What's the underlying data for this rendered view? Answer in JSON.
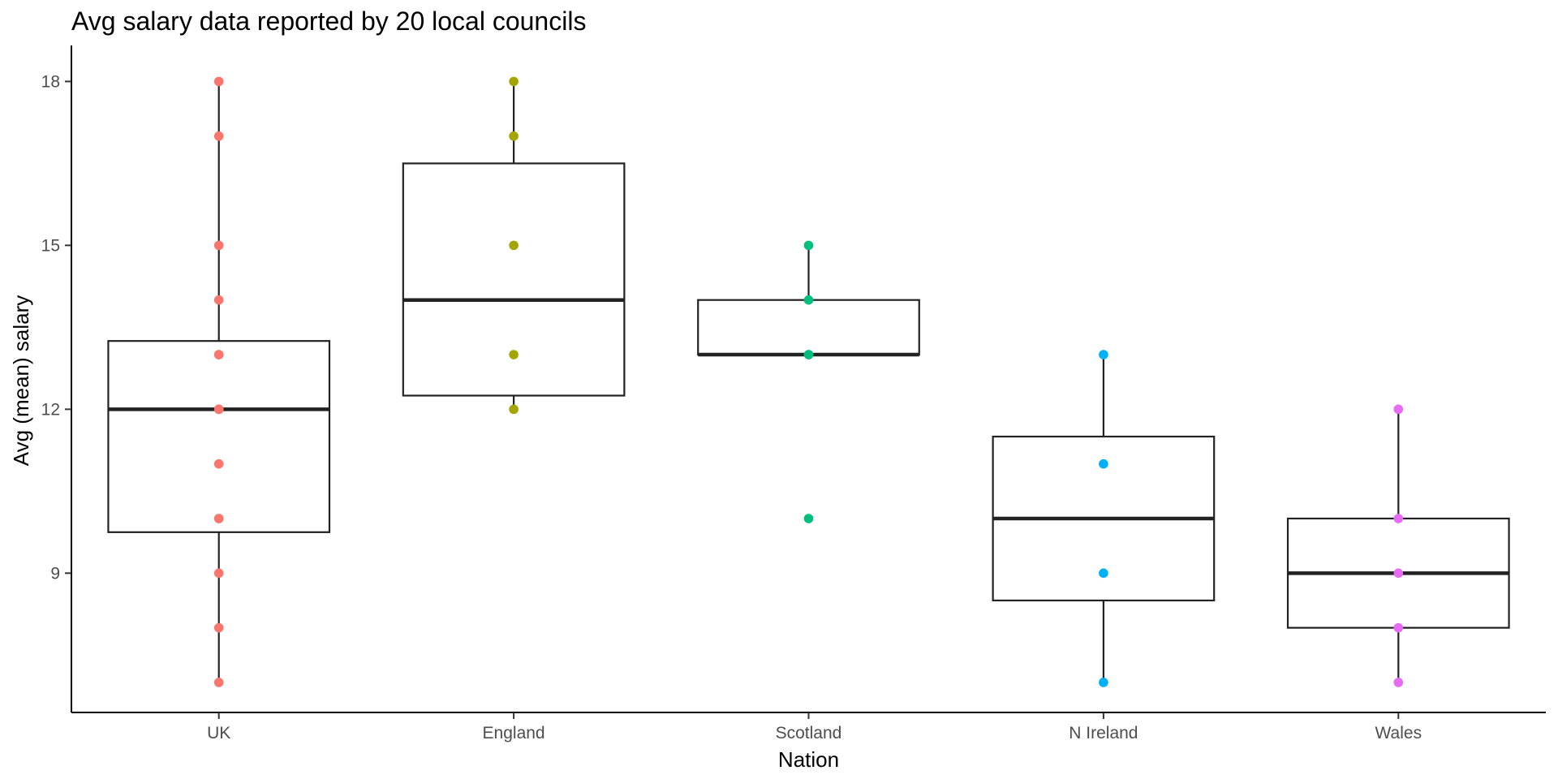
{
  "chart_data": {
    "type": "box",
    "title": "Avg salary data reported by 20 local councils",
    "xlabel": "Nation",
    "ylabel": "Avg (mean) salary",
    "categories": [
      "UK",
      "England",
      "Scotland",
      "N Ireland",
      "Wales"
    ],
    "ylim": [
      6.45,
      18.6
    ],
    "yticks": [
      "9",
      "12",
      "15",
      "18"
    ],
    "grid": false,
    "legend": "none",
    "series": [
      {
        "category": "UK",
        "color": "#F8766D",
        "box": {
          "whisker_low": 7,
          "q1": 9.75,
          "median": 12,
          "q3": 13.25,
          "whisker_high": 18
        },
        "points": [
          18,
          17,
          15,
          14,
          13,
          13,
          12,
          12,
          11,
          10,
          10,
          9,
          8,
          7
        ]
      },
      {
        "category": "England",
        "color": "#A3A500",
        "box": {
          "whisker_low": 12,
          "q1": 12.25,
          "median": 14,
          "q3": 16.5,
          "whisker_high": 18
        },
        "points": [
          18,
          17,
          15,
          13,
          12
        ]
      },
      {
        "category": "Scotland",
        "color": "#00BF7D",
        "box": {
          "whisker_low": 13,
          "q1": 13,
          "median": 13,
          "q3": 14,
          "whisker_high": 15
        },
        "points": [
          15,
          14,
          13,
          13,
          10
        ],
        "outliers": [
          10
        ]
      },
      {
        "category": "N Ireland",
        "color": "#00B0F6",
        "box": {
          "whisker_low": 7,
          "q1": 8.5,
          "median": 10,
          "q3": 11.5,
          "whisker_high": 13
        },
        "points": [
          13,
          11,
          9,
          7
        ]
      },
      {
        "category": "Wales",
        "color": "#E76BF3",
        "box": {
          "whisker_low": 7,
          "q1": 8,
          "median": 9,
          "q3": 10,
          "whisker_high": 12
        },
        "points": [
          12,
          10,
          9,
          8,
          7
        ]
      }
    ]
  }
}
